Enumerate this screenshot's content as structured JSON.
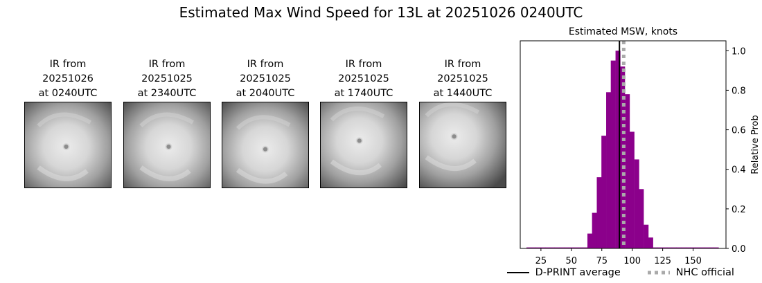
{
  "title": "Estimated Max Wind Speed for 13L at 20251026 0240UTC",
  "ir_images": [
    {
      "line1": "IR from",
      "line2": "20251026",
      "line3": "at 0240UTC",
      "eye_x": 0.48,
      "eye_y": 0.52
    },
    {
      "line1": "IR from",
      "line2": "20251025",
      "line3": "at 2340UTC",
      "eye_x": 0.52,
      "eye_y": 0.52
    },
    {
      "line1": "IR from",
      "line2": "20251025",
      "line3": "at 2040UTC",
      "eye_x": 0.5,
      "eye_y": 0.55
    },
    {
      "line1": "IR from",
      "line2": "20251025",
      "line3": "at 1740UTC",
      "eye_x": 0.45,
      "eye_y": 0.45
    },
    {
      "line1": "IR from",
      "line2": "20251025",
      "line3": "at 1440UTC",
      "eye_x": 0.4,
      "eye_y": 0.4
    }
  ],
  "chart_data": {
    "type": "bar",
    "title": "Estimated MSW, knots",
    "xlabel": "",
    "ylabel": "Relative Prob",
    "xlim": [
      8,
      177
    ],
    "ylim": [
      0,
      1.05
    ],
    "xticks": [
      25,
      50,
      75,
      100,
      125,
      150
    ],
    "yticks": [
      0.0,
      0.2,
      0.4,
      0.6,
      0.8,
      1.0
    ],
    "ytick_labels": [
      "0.0",
      "0.2",
      "0.4",
      "0.6",
      "0.8",
      "1.0"
    ],
    "yaxis_position": "right",
    "bar_color": "#8b008b",
    "bin_width": 3.85,
    "bins": [
      {
        "x": 15.0,
        "y": 0.005
      },
      {
        "x": 18.9,
        "y": 0.005
      },
      {
        "x": 22.7,
        "y": 0.005
      },
      {
        "x": 26.6,
        "y": 0.005
      },
      {
        "x": 30.4,
        "y": 0.005
      },
      {
        "x": 34.3,
        "y": 0.005
      },
      {
        "x": 38.1,
        "y": 0.005
      },
      {
        "x": 42.0,
        "y": 0.005
      },
      {
        "x": 45.8,
        "y": 0.005
      },
      {
        "x": 49.7,
        "y": 0.005
      },
      {
        "x": 53.5,
        "y": 0.005
      },
      {
        "x": 57.4,
        "y": 0.005
      },
      {
        "x": 61.2,
        "y": 0.005
      },
      {
        "x": 65.1,
        "y": 0.075
      },
      {
        "x": 68.9,
        "y": 0.18
      },
      {
        "x": 72.8,
        "y": 0.36
      },
      {
        "x": 76.6,
        "y": 0.57
      },
      {
        "x": 80.5,
        "y": 0.79
      },
      {
        "x": 84.3,
        "y": 0.95
      },
      {
        "x": 88.2,
        "y": 1.0
      },
      {
        "x": 92.0,
        "y": 0.92
      },
      {
        "x": 95.9,
        "y": 0.78
      },
      {
        "x": 99.7,
        "y": 0.59
      },
      {
        "x": 103.6,
        "y": 0.45
      },
      {
        "x": 107.4,
        "y": 0.3
      },
      {
        "x": 111.3,
        "y": 0.12
      },
      {
        "x": 115.1,
        "y": 0.055
      },
      {
        "x": 119.0,
        "y": 0.005
      },
      {
        "x": 122.8,
        "y": 0.005
      },
      {
        "x": 126.7,
        "y": 0.005
      },
      {
        "x": 130.5,
        "y": 0.005
      },
      {
        "x": 134.4,
        "y": 0.005
      },
      {
        "x": 138.2,
        "y": 0.005
      },
      {
        "x": 142.1,
        "y": 0.005
      },
      {
        "x": 145.9,
        "y": 0.005
      },
      {
        "x": 149.8,
        "y": 0.005
      },
      {
        "x": 153.6,
        "y": 0.005
      },
      {
        "x": 157.5,
        "y": 0.005
      },
      {
        "x": 161.3,
        "y": 0.005
      },
      {
        "x": 165.2,
        "y": 0.005
      },
      {
        "x": 169.0,
        "y": 0.005
      }
    ],
    "dprint_average": 89.5,
    "nhc_official": 93,
    "legend": [
      {
        "name": "D-PRINT average",
        "color": "#000000",
        "style": "solid"
      },
      {
        "name": "NHC official",
        "color": "#aaaaaa",
        "style": "dotted"
      }
    ],
    "legend_placement": "bottom"
  }
}
